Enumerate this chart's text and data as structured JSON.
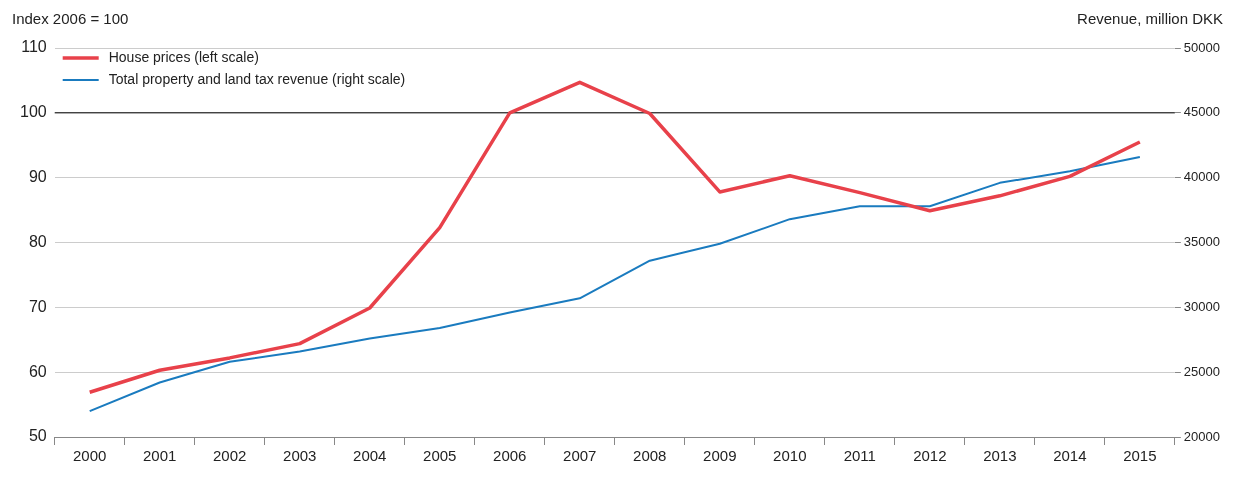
{
  "chart_data": {
    "type": "line",
    "ylabel": "Index 2006 = 100",
    "y2label": "Revenue, million DKK",
    "categories": [
      "2000",
      "2001",
      "2002",
      "2003",
      "2004",
      "2005",
      "2006",
      "2007",
      "2008",
      "2009",
      "2010",
      "2011",
      "2012",
      "2013",
      "2014",
      "2015"
    ],
    "series": [
      {
        "name": "House prices (left scale)",
        "color": "#e8414a",
        "values": [
          56.9,
          60.3,
          62.2,
          64.4,
          69.9,
          82.3,
          100,
          104.7,
          99.9,
          87.8,
          90.3,
          87.7,
          84.9,
          87.2,
          90.2,
          95.5
        ]
      },
      {
        "name": "Total property and land tax revenue (right scale)",
        "color": "#1a7bbf",
        "axis": "y2",
        "values": [
          22000,
          24200,
          25800,
          26600,
          27600,
          28400,
          29600,
          30700,
          33600,
          34900,
          36800,
          37800,
          37800,
          39600,
          40500,
          41600
        ]
      }
    ],
    "ylim": [
      50,
      110
    ],
    "yticks": [
      50,
      60,
      70,
      80,
      90,
      100,
      110
    ],
    "y2lim": [
      20000,
      50000
    ],
    "y2ticks": [
      20000,
      25000,
      30000,
      35000,
      40000,
      45000,
      50000
    ],
    "ref_lines": [
      {
        "axis": "y",
        "value": 100,
        "color": "#000000"
      }
    ],
    "grid": "y",
    "legend": "top left",
    "marker": "none",
    "line_style": "solid"
  }
}
